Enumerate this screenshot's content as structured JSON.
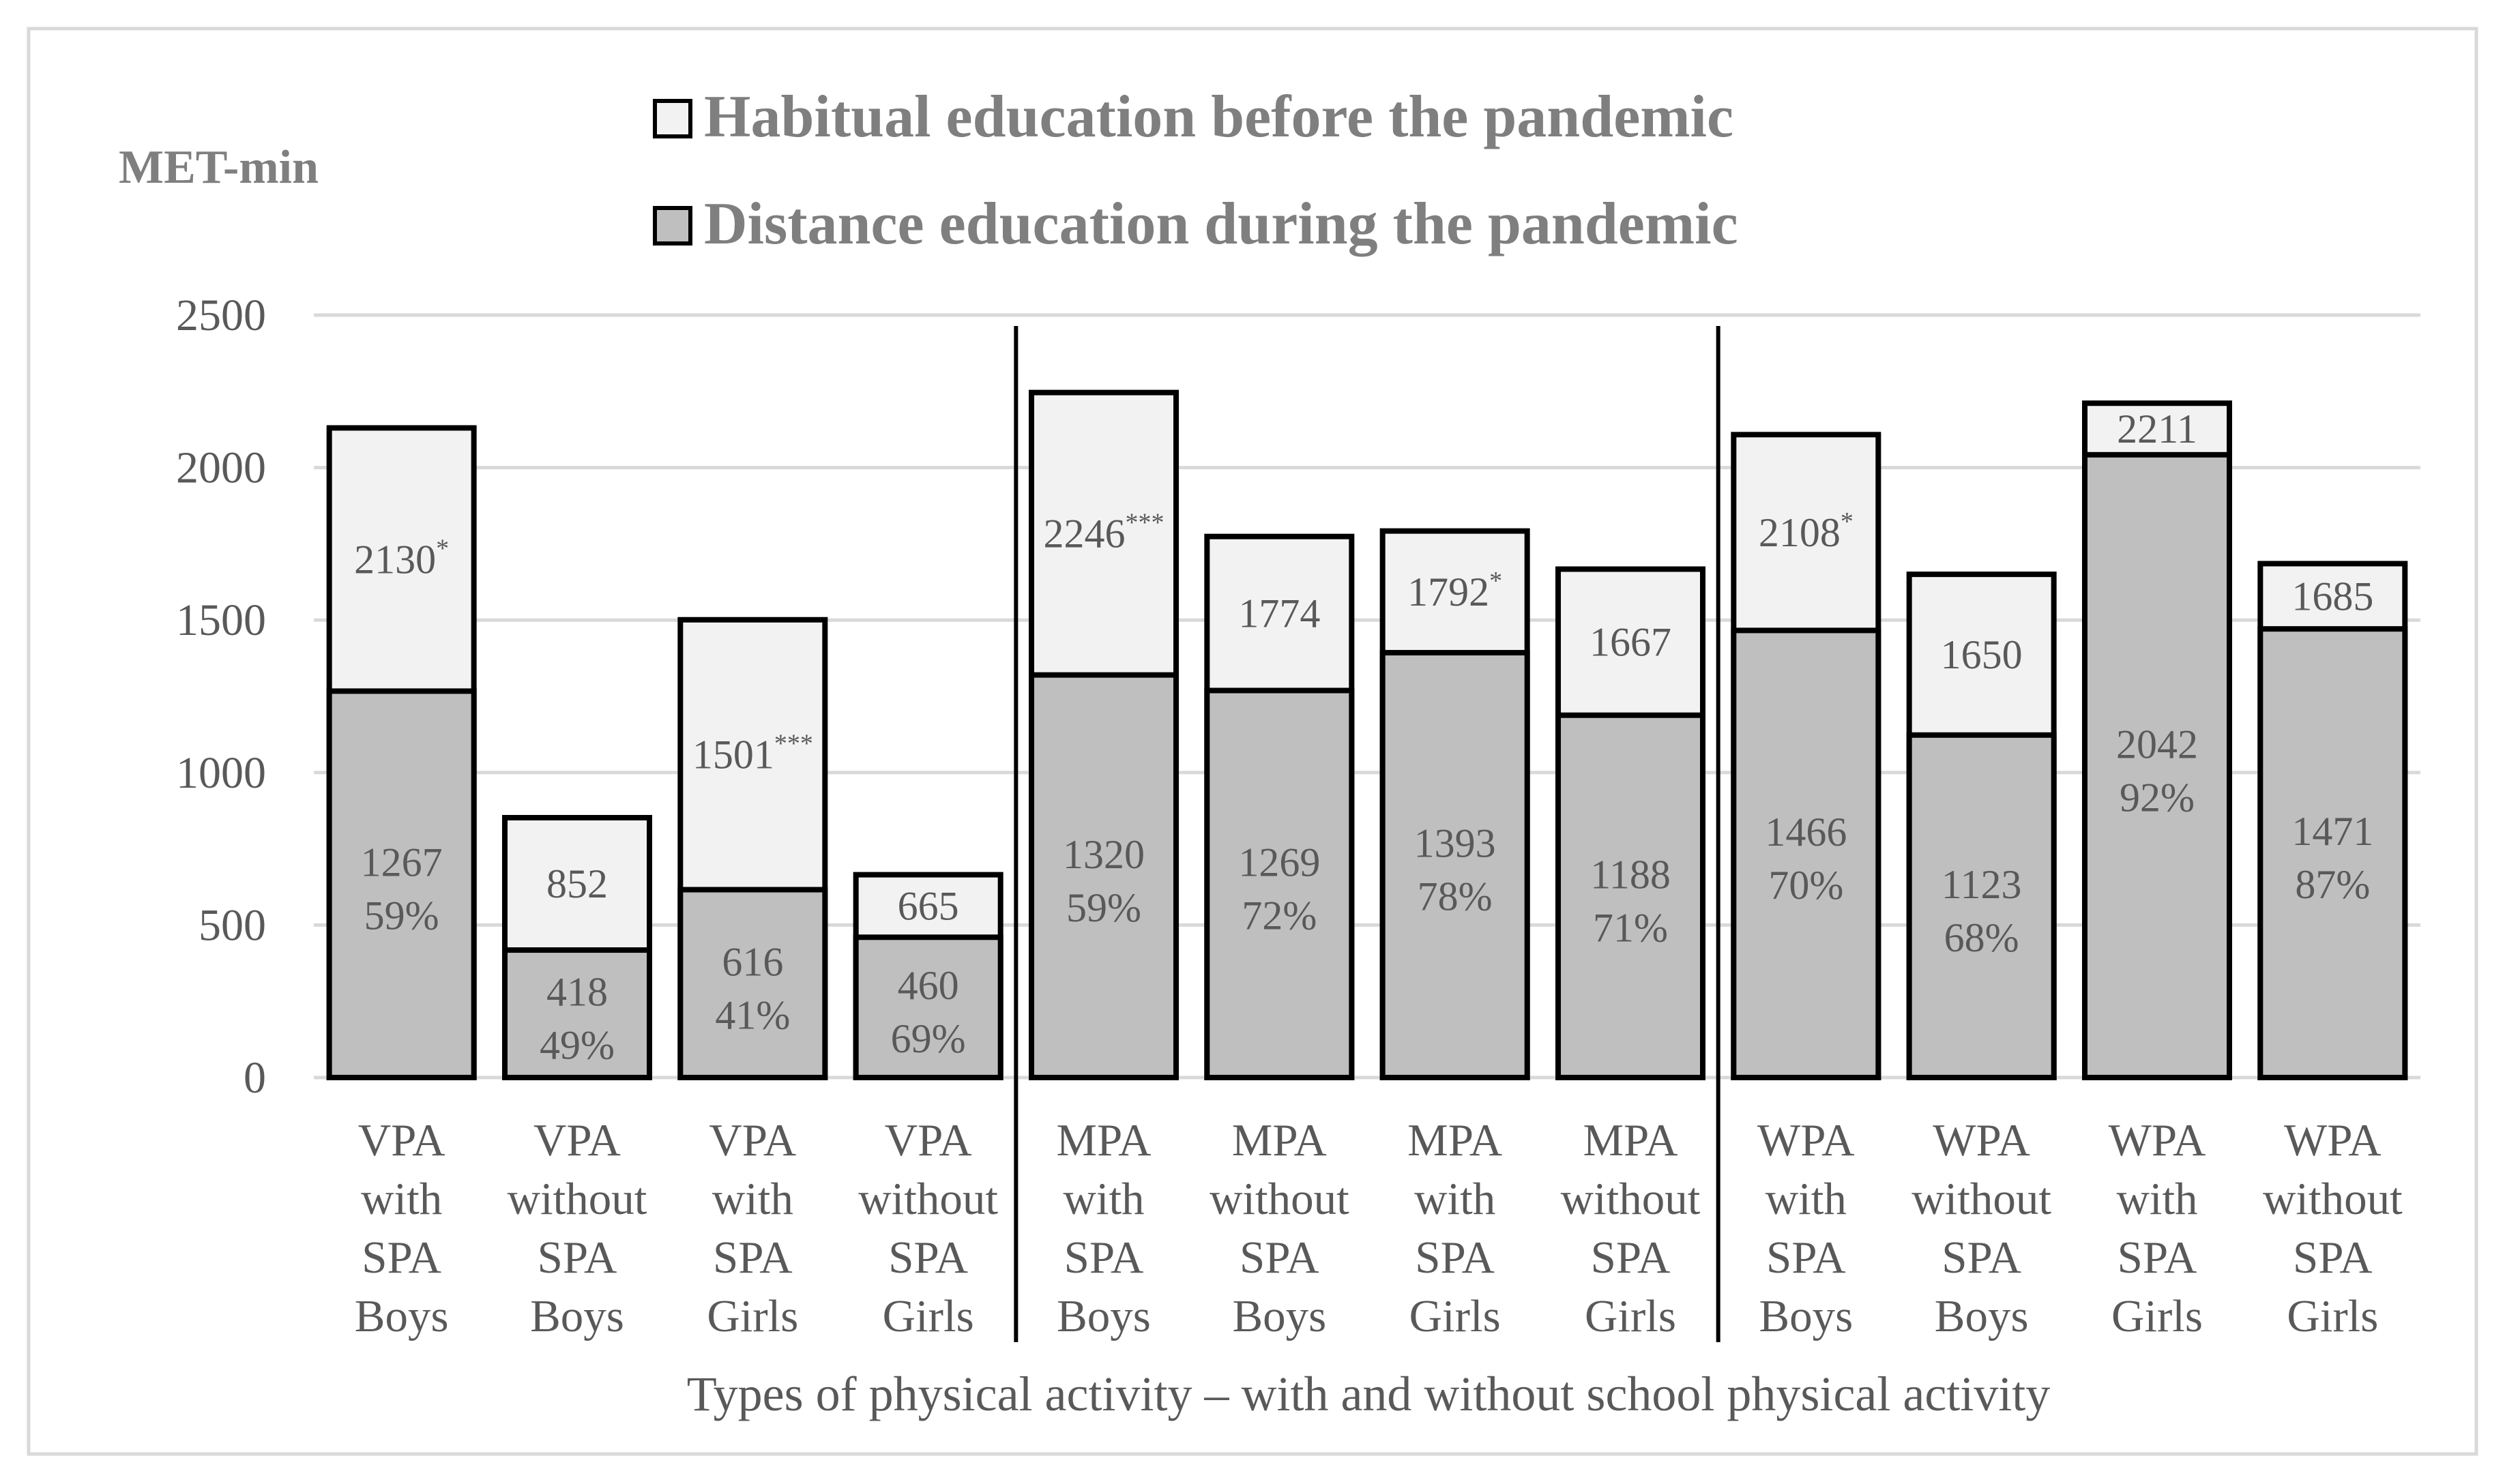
{
  "chart_data": {
    "type": "bar",
    "layout": "overlapping",
    "ylabel": "MET-min",
    "xlabel": "Types of physical activity – with and without school physical activity",
    "ylim": [
      0,
      2500
    ],
    "yticks": [
      0,
      500,
      1000,
      1500,
      2000,
      2500
    ],
    "grid": true,
    "legend_position": "top",
    "groups": [
      "VPA",
      "MPA",
      "WPA"
    ],
    "categories": [
      [
        "VPA",
        "with",
        "SPA",
        "Boys"
      ],
      [
        "VPA",
        "without",
        "SPA",
        "Boys"
      ],
      [
        "VPA",
        "with",
        "SPA",
        "Girls"
      ],
      [
        "VPA",
        "without",
        "SPA",
        "Girls"
      ],
      [
        "MPA",
        "with",
        "SPA",
        "Boys"
      ],
      [
        "MPA",
        "without",
        "SPA",
        "Boys"
      ],
      [
        "MPA",
        "with",
        "SPA",
        "Girls"
      ],
      [
        "MPA",
        "without",
        "SPA",
        "Girls"
      ],
      [
        "WPA",
        "with",
        "SPA",
        "Boys"
      ],
      [
        "WPA",
        "without",
        "SPA",
        "Boys"
      ],
      [
        "WPA",
        "with",
        "SPA",
        "Girls"
      ],
      [
        "WPA",
        "without",
        "SPA",
        "Girls"
      ]
    ],
    "series": [
      {
        "name": "Habitual education before the pandemic",
        "color": "#f2f2f2",
        "values": [
          2130,
          852,
          1501,
          665,
          2246,
          1774,
          1792,
          1667,
          2108,
          1650,
          2211,
          1685
        ],
        "significance": [
          "*",
          "",
          "***",
          "",
          "***",
          "",
          "*",
          "",
          "*",
          "",
          "",
          ""
        ]
      },
      {
        "name": "Distance education during the pandemic",
        "color": "#bfbfbf",
        "values": [
          1267,
          418,
          616,
          460,
          1320,
          1269,
          1393,
          1188,
          1466,
          1123,
          2042,
          1471
        ],
        "percent_labels": [
          "59%",
          "49%",
          "41%",
          "69%",
          "59%",
          "72%",
          "78%",
          "71%",
          "70%",
          "68%",
          "92%",
          "87%"
        ]
      }
    ]
  }
}
